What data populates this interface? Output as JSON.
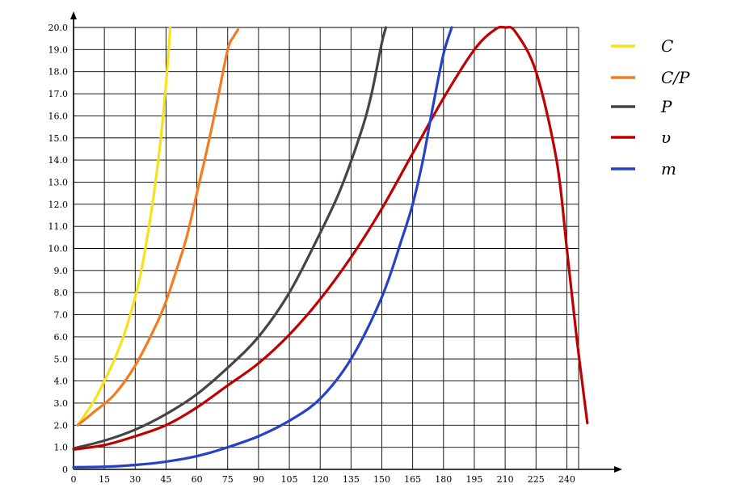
{
  "chart_data": {
    "type": "line",
    "title": "",
    "xlabel": "",
    "ylabel": "",
    "xlim": [
      0,
      252
    ],
    "ylim": [
      0,
      20
    ],
    "grid": true,
    "legend_position": "top-right",
    "x_ticks": [
      "0",
      "15",
      "30",
      "45",
      "60",
      "75",
      "90",
      "105",
      "120",
      "135",
      "150",
      "165",
      "180",
      "195",
      "210",
      "225",
      "240"
    ],
    "y_ticks": [
      "0",
      "1.0",
      "2.0",
      "3.0",
      "4.0",
      "5.0",
      "6.0",
      "7.0",
      "8.0",
      "9.0",
      "10.0",
      "11.0",
      "12.0",
      "13.0",
      "14.0",
      "15.0",
      "16.0",
      "17.0",
      "18.0",
      "19.0",
      "20.0"
    ],
    "series": [
      {
        "name": "C",
        "color": "#f7e11b",
        "x": [
          2,
          5,
          10,
          15,
          20,
          25,
          30,
          33,
          36,
          39,
          42,
          44,
          46,
          47
        ],
        "y": [
          2.0,
          2.4,
          3.1,
          4.0,
          5.0,
          6.2,
          7.8,
          9.0,
          10.6,
          12.4,
          14.6,
          16.4,
          18.6,
          20.0
        ]
      },
      {
        "name": "C/P",
        "color": "#f47c20",
        "x": [
          2,
          10,
          20,
          30,
          40,
          45,
          50,
          55,
          60,
          65,
          70,
          75,
          78,
          80
        ],
        "y": [
          2.0,
          2.6,
          3.4,
          4.7,
          6.5,
          7.6,
          9.0,
          10.5,
          12.5,
          14.5,
          16.7,
          19.0,
          19.6,
          19.9
        ]
      },
      {
        "name": "P",
        "color": "#454545",
        "x": [
          0,
          15,
          30,
          45,
          60,
          75,
          90,
          105,
          120,
          130,
          140,
          145,
          150,
          152
        ],
        "y": [
          0.95,
          1.3,
          1.8,
          2.5,
          3.4,
          4.6,
          6.0,
          8.0,
          10.7,
          12.7,
          15.3,
          17.0,
          19.3,
          20.0
        ]
      },
      {
        "name": "υ",
        "color": "#c00000",
        "x": [
          0,
          15,
          30,
          45,
          60,
          75,
          90,
          105,
          120,
          135,
          150,
          165,
          180,
          195,
          205,
          210,
          215,
          225,
          235,
          240,
          245,
          250
        ],
        "y": [
          0.9,
          1.1,
          1.5,
          2.0,
          2.8,
          3.8,
          4.8,
          6.1,
          7.7,
          9.6,
          11.8,
          14.3,
          16.8,
          19.0,
          19.9,
          20.0,
          19.8,
          18.0,
          14.0,
          10.0,
          5.8,
          2.1
        ]
      },
      {
        "name": "m",
        "color": "#2740c8",
        "x": [
          0,
          15,
          30,
          45,
          60,
          75,
          90,
          105,
          120,
          135,
          150,
          160,
          165,
          170,
          175,
          180,
          184
        ],
        "y": [
          0.1,
          0.12,
          0.2,
          0.35,
          0.6,
          1.0,
          1.5,
          2.2,
          3.2,
          5.0,
          7.8,
          10.5,
          12.0,
          14.0,
          16.5,
          18.8,
          20.0
        ]
      }
    ]
  }
}
